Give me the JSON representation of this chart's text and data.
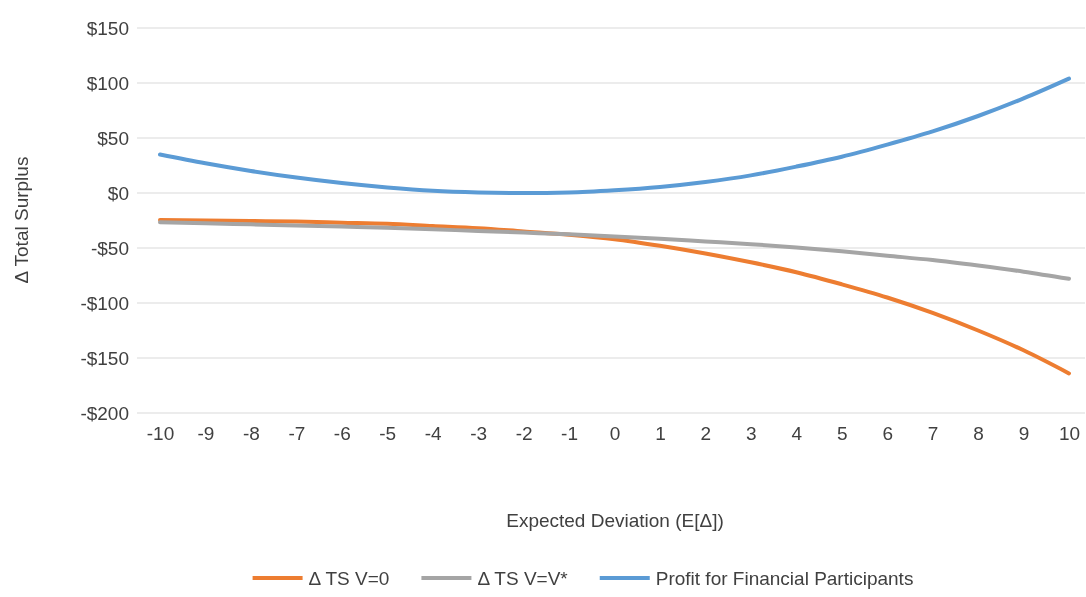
{
  "chart_data": {
    "type": "line",
    "xlabel": "Expected Deviation (E[Δ])",
    "ylabel": "Δ Total Surplus",
    "categories": [
      "-10",
      "-9",
      "-8",
      "-7",
      "-6",
      "-5",
      "-4",
      "-3",
      "-2",
      "-1",
      "0",
      "1",
      "2",
      "3",
      "4",
      "5",
      "6",
      "7",
      "8",
      "9",
      "10"
    ],
    "series": [
      {
        "name": "Δ TS V=0",
        "color": "#ed7d31",
        "values": [
          -24.5,
          -25,
          -25.5,
          -26,
          -27,
          -28,
          -30,
          -32,
          -35,
          -38,
          -42,
          -48,
          -55,
          -63,
          -72,
          -83,
          -95,
          -109,
          -125,
          -143,
          -164
        ]
      },
      {
        "name": "Δ TS V=V*",
        "color": "#a5a5a5",
        "values": [
          -26.5,
          -27.5,
          -28.5,
          -29.5,
          -30.5,
          -31.5,
          -33,
          -34.5,
          -36,
          -37.5,
          -39.5,
          -41.5,
          -44,
          -46.5,
          -49.5,
          -53,
          -57,
          -61,
          -66,
          -71.5,
          -78
        ]
      },
      {
        "name": "Profit for Financial Participants",
        "color": "#5b9bd5",
        "values": [
          35,
          27,
          20,
          14,
          9,
          5,
          2,
          0.5,
          0,
          0.5,
          2.5,
          5.5,
          10,
          16,
          24,
          33,
          44,
          56,
          70,
          86,
          104
        ]
      }
    ],
    "ylim": [
      -200,
      150
    ],
    "yticks": [
      {
        "value": -200,
        "label": "-$200"
      },
      {
        "value": -150,
        "label": "-$150"
      },
      {
        "value": -100,
        "label": "-$100"
      },
      {
        "value": -50,
        "label": "-$50"
      },
      {
        "value": 0,
        "label": "$0"
      },
      {
        "value": 50,
        "label": "$50"
      },
      {
        "value": 100,
        "label": "$100"
      },
      {
        "value": 150,
        "label": "$150"
      }
    ],
    "grid": "y",
    "legend": "bottom",
    "marker": "none",
    "line_style": "solid"
  }
}
